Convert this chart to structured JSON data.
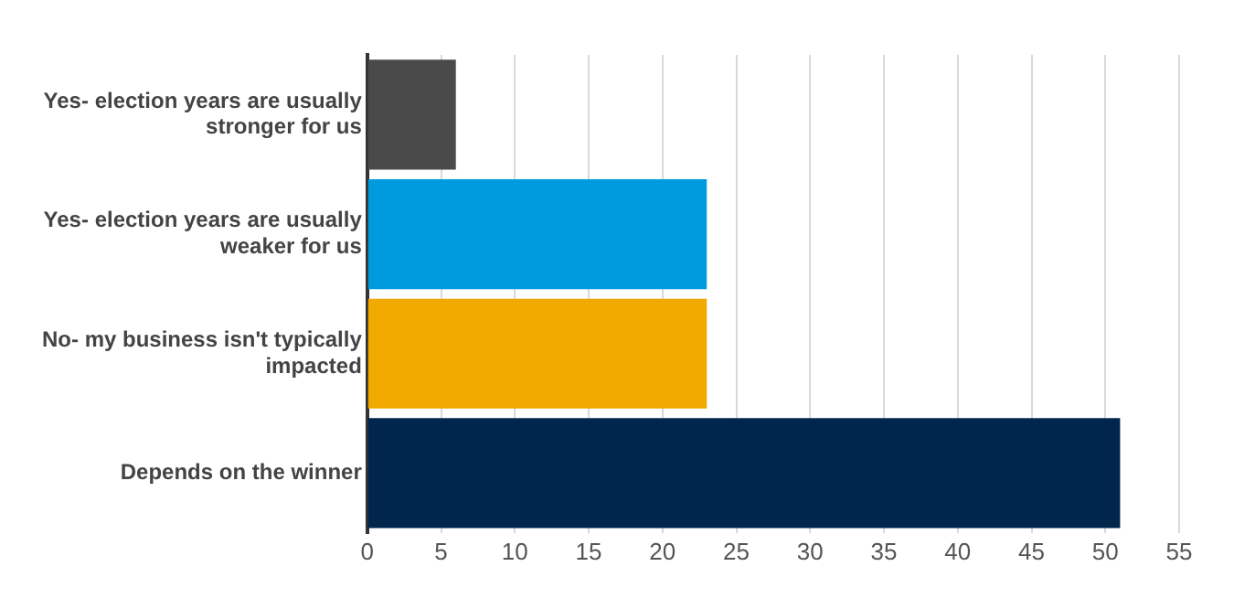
{
  "chart_data": {
    "type": "bar",
    "orientation": "horizontal",
    "categories": [
      "Yes- election years are usually stronger for us",
      "Yes- election years are usually weaker for us",
      "No- my business isn't typically impacted",
      "Depends on the winner"
    ],
    "values": [
      6,
      23,
      23,
      51
    ],
    "colors": [
      "#4a4a4a",
      "#009bde",
      "#f2a900",
      "#00264d"
    ],
    "xlim": [
      0,
      55
    ],
    "xticks": [
      0,
      5,
      10,
      15,
      20,
      25,
      30,
      35,
      40,
      45,
      50,
      55
    ],
    "grid": "x",
    "legend": false
  }
}
